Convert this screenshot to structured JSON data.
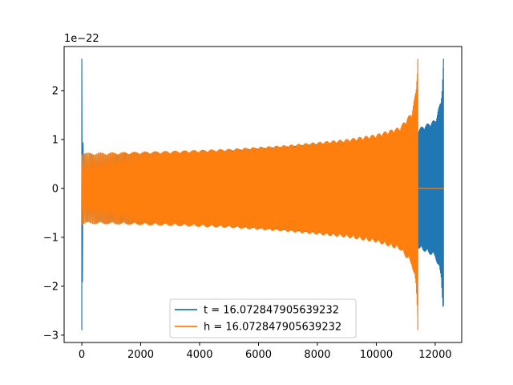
{
  "chart_data": {
    "type": "line",
    "title": "",
    "xlabel": "",
    "ylabel": "",
    "xlim": [
      -600,
      12900
    ],
    "ylim": [
      -3.15,
      2.9
    ],
    "x_ticks": [
      0,
      2000,
      4000,
      6000,
      8000,
      10000,
      12000
    ],
    "x_tick_labels": [
      "0",
      "2000",
      "4000",
      "6000",
      "8000",
      "10000",
      "12000"
    ],
    "y_ticks": [
      -3,
      -2,
      -1,
      0,
      1,
      2
    ],
    "y_tick_labels": [
      "−3",
      "−2",
      "−1",
      "0",
      "1",
      "2"
    ],
    "y_offset_label": "1e−22",
    "grid": false,
    "legend_position": "bottom-center",
    "series": [
      {
        "name": "t = 16.072847905639232",
        "color": "#1f77b4",
        "start": 0,
        "end": 12280,
        "envelope": {
          "x": [
            0,
            50,
            1000,
            3000,
            5000,
            7000,
            9000,
            10500,
            11400,
            11430,
            12000,
            12200,
            12280
          ],
          "amplitude": [
            2.85,
            0.72,
            0.72,
            0.74,
            0.78,
            0.85,
            0.95,
            1.08,
            1.2,
            1.22,
            1.4,
            1.8,
            2.6
          ]
        },
        "spikes": [
          {
            "x": 0,
            "max": 2.5,
            "min": -2.9
          },
          {
            "x": 12280,
            "max": 2.65,
            "min": -2.4
          }
        ]
      },
      {
        "name": "h = 16.072847905639232",
        "color": "#ff7f0e",
        "start": 0,
        "end": 11410,
        "flat_until": 12280,
        "envelope": {
          "x": [
            0,
            50,
            1000,
            3000,
            5000,
            7000,
            9000,
            10000,
            10800,
            11200,
            11350,
            11410
          ],
          "amplitude": [
            0.75,
            0.72,
            0.73,
            0.76,
            0.8,
            0.88,
            1.0,
            1.1,
            1.25,
            1.55,
            2.0,
            2.65
          ]
        },
        "spikes": [
          {
            "x": 11410,
            "max": 2.65,
            "min": -2.9
          }
        ]
      }
    ]
  }
}
